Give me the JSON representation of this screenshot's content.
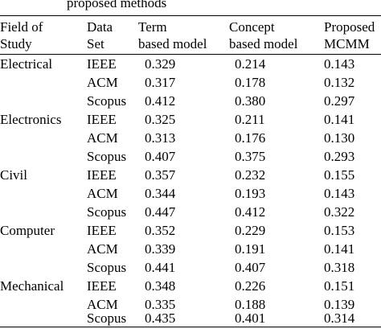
{
  "caption_fragment": "proposed methods",
  "header": {
    "field": [
      "Field of",
      "Study"
    ],
    "data_set": [
      "Data",
      "Set"
    ],
    "term": [
      "Term",
      "based model"
    ],
    "concept": [
      "Concept",
      "based model"
    ],
    "proposed": [
      "Proposed",
      "MCMM"
    ]
  },
  "rows": [
    {
      "field": "Electrical",
      "set": "IEEE",
      "term": "0.329",
      "concept": "0.214",
      "proposed": "0.143"
    },
    {
      "field": "",
      "set": "ACM",
      "term": "0.317",
      "concept": "0.178",
      "proposed": "0.132"
    },
    {
      "field": "",
      "set": "Scopus",
      "term": "0.412",
      "concept": "0.380",
      "proposed": "0.297"
    },
    {
      "field": "Electronics",
      "set": "IEEE",
      "term": "0.325",
      "concept": "0.211",
      "proposed": "0.141"
    },
    {
      "field": "",
      "set": "ACM",
      "term": "0.313",
      "concept": "0.176",
      "proposed": "0.130"
    },
    {
      "field": "",
      "set": "Scopus",
      "term": "0.407",
      "concept": "0.375",
      "proposed": "0.293"
    },
    {
      "field": "Civil",
      "set": "IEEE",
      "term": "0.357",
      "concept": "0.232",
      "proposed": "0.155"
    },
    {
      "field": "",
      "set": "ACM",
      "term": "0.344",
      "concept": "0.193",
      "proposed": "0.143"
    },
    {
      "field": "",
      "set": "Scopus",
      "term": "0.447",
      "concept": "0.412",
      "proposed": "0.322"
    },
    {
      "field": "Computer",
      "set": "IEEE",
      "term": "0.352",
      "concept": "0.229",
      "proposed": "0.153"
    },
    {
      "field": "",
      "set": "ACM",
      "term": "0.339",
      "concept": "0.191",
      "proposed": "0.141"
    },
    {
      "field": "",
      "set": "Scopus",
      "term": "0.441",
      "concept": "0.407",
      "proposed": "0.318"
    },
    {
      "field": "Mechanical",
      "set": "IEEE",
      "term": "0.348",
      "concept": "0.226",
      "proposed": "0.151"
    },
    {
      "field": "",
      "set": "ACM",
      "term": "0.335",
      "concept": "0.188",
      "proposed": "0.139"
    },
    {
      "field": "",
      "set": "Scopus",
      "term": "0.435",
      "concept": "0.401",
      "proposed": "0.314"
    }
  ]
}
